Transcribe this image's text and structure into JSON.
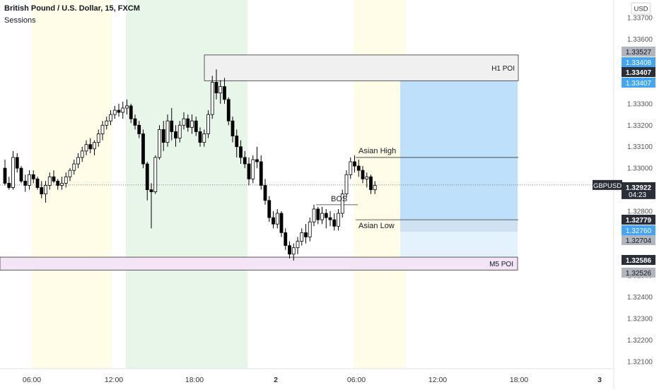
{
  "header": {
    "title": "British Pound / U.S. Dollar, 15, FXCM",
    "indicator": "Sessions"
  },
  "price_axis": {
    "currency": "USD",
    "symbol_label": "GBPUSD",
    "countdown": "04:23",
    "ticks": [
      "1.33700",
      "1.33600",
      "1.33300",
      "1.33200",
      "1.33100",
      "1.33000",
      "1.32800",
      "1.32500",
      "1.32400",
      "1.32300",
      "1.32200",
      "1.32100"
    ],
    "tags": [
      {
        "text": "1.33527",
        "kind": "gray"
      },
      {
        "text": "1.33408",
        "kind": "blue"
      },
      {
        "text": "1.33407",
        "kind": "dark"
      },
      {
        "text": "1.33407",
        "kind": "blue"
      },
      {
        "text": "1.32922",
        "kind": "dark"
      },
      {
        "text": "1.32779",
        "kind": "dark"
      },
      {
        "text": "1.32760",
        "kind": "blue"
      },
      {
        "text": "1.32704",
        "kind": "gray"
      },
      {
        "text": "1.32586",
        "kind": "dark"
      },
      {
        "text": "1.32526",
        "kind": "gray"
      }
    ]
  },
  "time_axis": {
    "labels": [
      "06:00",
      "12:00",
      "18:00",
      "2",
      "06:00",
      "12:00",
      "18:00",
      "3"
    ]
  },
  "annotations": {
    "h1_poi": "H1 POI",
    "m5_poi": "M5 POI",
    "asian_high": "Asian High",
    "asian_low": "Asian Low",
    "bos": "BOS"
  },
  "colors": {
    "bull_body": "#ffffff",
    "bear_body": "#000000",
    "asia_session": "#fffde7",
    "london_session": "#e8f5e9",
    "target_zone": "#bbdefb",
    "stop_zone": "#e3f2fd",
    "h1_poi_zone": "#f0f0f0",
    "m5_poi_zone": "#f3e5f5"
  },
  "chart_data": {
    "type": "candlestick",
    "symbol": "GBPUSD",
    "timeframe": "15",
    "y_range": [
      1.3208,
      1.3375
    ],
    "current_price": 1.32922,
    "levels": {
      "h1_poi": [
        1.33407,
        1.33527
      ],
      "m5_poi": [
        1.32526,
        1.32586
      ],
      "asian_high": 1.3305,
      "asian_low": 1.3276,
      "bos": 1.3283,
      "target_zone": [
        1.3276,
        1.33407
      ],
      "stop_zone": [
        1.32586,
        1.32704
      ]
    },
    "candles": [
      [
        1.33,
        1.3304,
        1.3292,
        1.3293
      ],
      [
        1.3293,
        1.3296,
        1.329,
        1.3291
      ],
      [
        1.3291,
        1.3308,
        1.329,
        1.3305
      ],
      [
        1.3305,
        1.3307,
        1.3298,
        1.33
      ],
      [
        1.33,
        1.3301,
        1.3293,
        1.3294
      ],
      [
        1.3294,
        1.3297,
        1.3289,
        1.3292
      ],
      [
        1.3292,
        1.3299,
        1.329,
        1.3297
      ],
      [
        1.3297,
        1.3299,
        1.3293,
        1.3295
      ],
      [
        1.3295,
        1.3296,
        1.329,
        1.3291
      ],
      [
        1.3291,
        1.3294,
        1.3286,
        1.3288
      ],
      [
        1.3288,
        1.3294,
        1.3284,
        1.3292
      ],
      [
        1.3292,
        1.3298,
        1.329,
        1.3296
      ],
      [
        1.3296,
        1.3299,
        1.3293,
        1.3294
      ],
      [
        1.3294,
        1.3295,
        1.329,
        1.3292
      ],
      [
        1.3292,
        1.3296,
        1.329,
        1.3293
      ],
      [
        1.3293,
        1.3298,
        1.3291,
        1.3296
      ],
      [
        1.3296,
        1.33,
        1.3294,
        1.3299
      ],
      [
        1.3299,
        1.3304,
        1.3297,
        1.3302
      ],
      [
        1.3302,
        1.3307,
        1.33,
        1.3305
      ],
      [
        1.3305,
        1.331,
        1.3303,
        1.3308
      ],
      [
        1.3308,
        1.3313,
        1.3306,
        1.3311
      ],
      [
        1.3311,
        1.3314,
        1.3307,
        1.3309
      ],
      [
        1.3309,
        1.3313,
        1.3306,
        1.3312
      ],
      [
        1.3312,
        1.3318,
        1.331,
        1.3316
      ],
      [
        1.3316,
        1.3322,
        1.3313,
        1.332
      ],
      [
        1.332,
        1.3324,
        1.3318,
        1.3322
      ],
      [
        1.3322,
        1.3327,
        1.332,
        1.3325
      ],
      [
        1.3325,
        1.3329,
        1.3323,
        1.3327
      ],
      [
        1.3327,
        1.333,
        1.3324,
        1.3326
      ],
      [
        1.3326,
        1.3331,
        1.3323,
        1.3328
      ],
      [
        1.3328,
        1.3332,
        1.3325,
        1.3329
      ],
      [
        1.3329,
        1.333,
        1.3321,
        1.3323
      ],
      [
        1.3323,
        1.3325,
        1.3318,
        1.332
      ],
      [
        1.332,
        1.3322,
        1.3314,
        1.3316
      ],
      [
        1.3316,
        1.3318,
        1.33,
        1.3302
      ],
      [
        1.3302,
        1.3303,
        1.3285,
        1.329
      ],
      [
        1.329,
        1.3293,
        1.3272,
        1.3289
      ],
      [
        1.3289,
        1.3306,
        1.3288,
        1.3305
      ],
      [
        1.3305,
        1.332,
        1.3304,
        1.3318
      ],
      [
        1.3318,
        1.3322,
        1.3308,
        1.3312
      ],
      [
        1.3312,
        1.3325,
        1.331,
        1.3322
      ],
      [
        1.3322,
        1.3328,
        1.3313,
        1.3317
      ],
      [
        1.3317,
        1.332,
        1.331,
        1.3314
      ],
      [
        1.3314,
        1.3322,
        1.3312,
        1.332
      ],
      [
        1.332,
        1.3326,
        1.3318,
        1.3323
      ],
      [
        1.3323,
        1.3325,
        1.3317,
        1.3319
      ],
      [
        1.3319,
        1.3325,
        1.3316,
        1.3322
      ],
      [
        1.3322,
        1.3324,
        1.3315,
        1.3317
      ],
      [
        1.3317,
        1.3319,
        1.331,
        1.3312
      ],
      [
        1.3312,
        1.3318,
        1.331,
        1.3316
      ],
      [
        1.3316,
        1.3327,
        1.3314,
        1.3325
      ],
      [
        1.3325,
        1.3343,
        1.3323,
        1.334
      ],
      [
        1.334,
        1.3346,
        1.3332,
        1.3335
      ],
      [
        1.3335,
        1.3341,
        1.333,
        1.3338
      ],
      [
        1.3338,
        1.3342,
        1.333,
        1.3332
      ],
      [
        1.3332,
        1.3333,
        1.332,
        1.3322
      ],
      [
        1.3322,
        1.3324,
        1.3312,
        1.3315
      ],
      [
        1.3315,
        1.3318,
        1.3305,
        1.331
      ],
      [
        1.331,
        1.3313,
        1.3302,
        1.3305
      ],
      [
        1.3305,
        1.3308,
        1.33,
        1.3302
      ],
      [
        1.3302,
        1.3305,
        1.3292,
        1.3295
      ],
      [
        1.3295,
        1.3306,
        1.3293,
        1.3304
      ],
      [
        1.3304,
        1.331,
        1.33,
        1.3303
      ],
      [
        1.3303,
        1.3306,
        1.329,
        1.3292
      ],
      [
        1.3292,
        1.3295,
        1.3283,
        1.3285
      ],
      [
        1.3285,
        1.3287,
        1.3275,
        1.3277
      ],
      [
        1.3277,
        1.328,
        1.3272,
        1.3274
      ],
      [
        1.3274,
        1.3281,
        1.3272,
        1.3279
      ],
      [
        1.3279,
        1.328,
        1.3268,
        1.327
      ],
      [
        1.327,
        1.3272,
        1.3262,
        1.3264
      ],
      [
        1.3264,
        1.3266,
        1.3258,
        1.326
      ],
      [
        1.326,
        1.3265,
        1.3257,
        1.3263
      ],
      [
        1.3263,
        1.3268,
        1.326,
        1.3266
      ],
      [
        1.3266,
        1.3272,
        1.3264,
        1.327
      ],
      [
        1.327,
        1.3274,
        1.3265,
        1.3268
      ],
      [
        1.3268,
        1.3277,
        1.3266,
        1.3275
      ],
      [
        1.3275,
        1.3283,
        1.3273,
        1.3281
      ],
      [
        1.3281,
        1.3282,
        1.3274,
        1.3276
      ],
      [
        1.3276,
        1.3282,
        1.3274,
        1.3279
      ],
      [
        1.3279,
        1.3281,
        1.3272,
        1.3277
      ],
      [
        1.3277,
        1.328,
        1.3273,
        1.3276
      ],
      [
        1.3276,
        1.3279,
        1.3271,
        1.3273
      ],
      [
        1.3273,
        1.3281,
        1.3271,
        1.3279
      ],
      [
        1.3279,
        1.329,
        1.3277,
        1.3288
      ],
      [
        1.3288,
        1.3299,
        1.3286,
        1.3297
      ],
      [
        1.3297,
        1.3305,
        1.3295,
        1.3303
      ],
      [
        1.3303,
        1.3306,
        1.3298,
        1.3301
      ],
      [
        1.3301,
        1.3304,
        1.3296,
        1.3299
      ],
      [
        1.3299,
        1.3301,
        1.3293,
        1.3295
      ],
      [
        1.3295,
        1.3298,
        1.3291,
        1.3296
      ],
      [
        1.3296,
        1.3297,
        1.3288,
        1.329
      ],
      [
        1.329,
        1.3294,
        1.3288,
        1.3292
      ]
    ]
  }
}
